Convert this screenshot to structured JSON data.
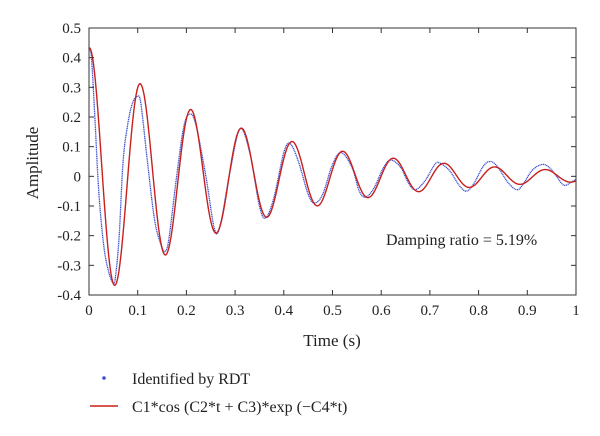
{
  "chart_data": {
    "type": "line",
    "title": "",
    "xlabel": "Time (s)",
    "ylabel": "Amplitude",
    "xlim": [
      0,
      1
    ],
    "ylim": [
      -0.4,
      0.5
    ],
    "xticks": [
      "0",
      "0.1",
      "0.2",
      "0.3",
      "0.4",
      "0.5",
      "0.6",
      "0.7",
      "0.8",
      "0.9",
      "1"
    ],
    "yticks": [
      "-0.4",
      "-0.3",
      "-0.2",
      "-0.1",
      "0",
      "0.1",
      "0.2",
      "0.3",
      "0.4",
      "0.5"
    ],
    "grid": false,
    "annotation": "Damping ratio = 5.19%",
    "legend_position": "below",
    "series": [
      {
        "name": "Identified by RDT",
        "style": "dotted",
        "color": "#3a4fd0",
        "x": [
          0,
          0.005,
          0.012,
          0.02,
          0.03,
          0.04,
          0.05,
          0.055,
          0.062,
          0.07,
          0.08,
          0.09,
          0.1,
          0.105,
          0.11,
          0.12,
          0.135,
          0.15,
          0.158,
          0.165,
          0.18,
          0.195,
          0.208,
          0.22,
          0.24,
          0.258,
          0.27,
          0.29,
          0.31,
          0.33,
          0.35,
          0.363,
          0.38,
          0.4,
          0.413,
          0.43,
          0.45,
          0.463,
          0.48,
          0.5,
          0.518,
          0.54,
          0.555,
          0.568,
          0.585,
          0.605,
          0.62,
          0.64,
          0.655,
          0.67,
          0.69,
          0.71,
          0.72,
          0.74,
          0.76,
          0.775,
          0.79,
          0.81,
          0.825,
          0.84,
          0.86,
          0.878,
          0.89,
          0.91,
          0.93,
          0.945,
          0.96,
          0.975,
          0.99,
          1.0
        ],
        "y": [
          0.43,
          0.4,
          0.2,
          -0.05,
          -0.23,
          -0.32,
          -0.36,
          -0.33,
          -0.2,
          0.05,
          0.18,
          0.25,
          0.27,
          0.26,
          0.2,
          0.05,
          -0.15,
          -0.24,
          -0.25,
          -0.2,
          0.0,
          0.17,
          0.21,
          0.17,
          0.0,
          -0.18,
          -0.16,
          0.02,
          0.16,
          0.08,
          -0.1,
          -0.14,
          -0.07,
          0.08,
          0.11,
          0.05,
          -0.06,
          -0.09,
          -0.06,
          0.04,
          0.08,
          0.03,
          -0.05,
          -0.07,
          -0.04,
          0.03,
          0.055,
          0.03,
          -0.02,
          -0.045,
          -0.015,
          0.04,
          0.045,
          0.02,
          -0.03,
          -0.05,
          -0.025,
          0.035,
          0.05,
          0.03,
          -0.02,
          -0.045,
          -0.03,
          0.02,
          0.04,
          0.03,
          0.0,
          -0.03,
          -0.02,
          -0.01
        ]
      },
      {
        "name": "C1*cos (C2*t + C3)*exp (−C4*t)",
        "style": "solid",
        "color": "#c8201c",
        "model": {
          "C1": 0.4345,
          "C2": 60.41,
          "C3": -0.1,
          "C4": 3.14
        }
      }
    ]
  },
  "legend": {
    "items": [
      {
        "label": "Identified by RDT",
        "marker": "dot",
        "color": "#3a4fd0"
      },
      {
        "label": "C1*cos (C2*t + C3)*exp (−C4*t)",
        "marker": "line",
        "color": "#c8201c"
      }
    ]
  }
}
